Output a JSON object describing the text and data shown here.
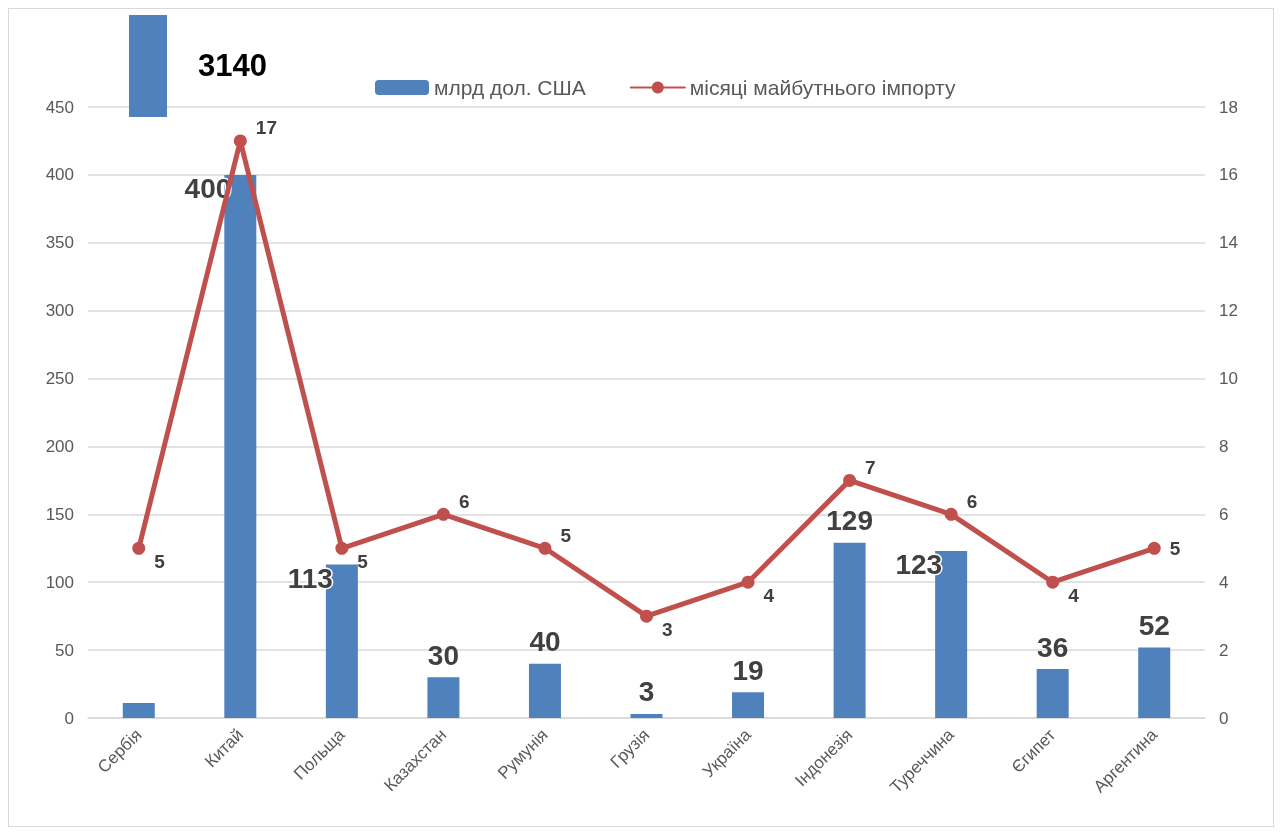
{
  "chart_data": {
    "type": "bar",
    "categories": [
      "Сербія",
      "Китай",
      "Польща",
      "Казахстан",
      "Румунія",
      "Грузія",
      "Україна",
      "Індонезія",
      "Туреччина",
      "Єгипет",
      "Аргентина"
    ],
    "series": [
      {
        "name": "млрд дол. США",
        "color": "#4f81bd",
        "values": [
          11,
          400,
          113,
          30,
          40,
          3,
          19,
          129,
          123,
          36,
          52
        ],
        "value_labels": [
          null,
          "400",
          "113",
          "30",
          "40",
          "3",
          "19",
          "129",
          "123",
          "36",
          "52"
        ]
      },
      {
        "name": "місяці майбутнього імпорту",
        "type": "line",
        "axis": "y2",
        "color": "#c0504d",
        "values": [
          5,
          17,
          5,
          6,
          5,
          3,
          4,
          7,
          6,
          4,
          5
        ],
        "value_labels": [
          "5",
          "17",
          "5",
          "6",
          "5",
          "3",
          "4",
          "7",
          "6",
          "4",
          "5"
        ]
      }
    ],
    "ylim": [
      0,
      450
    ],
    "yticks": [
      0,
      50,
      100,
      150,
      200,
      250,
      300,
      350,
      400,
      450
    ],
    "y2lim": [
      0,
      18
    ],
    "y2ticks": [
      0,
      2,
      4,
      6,
      8,
      10,
      12,
      14,
      16,
      18
    ],
    "grid": "y",
    "legend": "top",
    "marker": "circle",
    "line_style": "solid",
    "annotations": [
      "3140"
    ]
  }
}
